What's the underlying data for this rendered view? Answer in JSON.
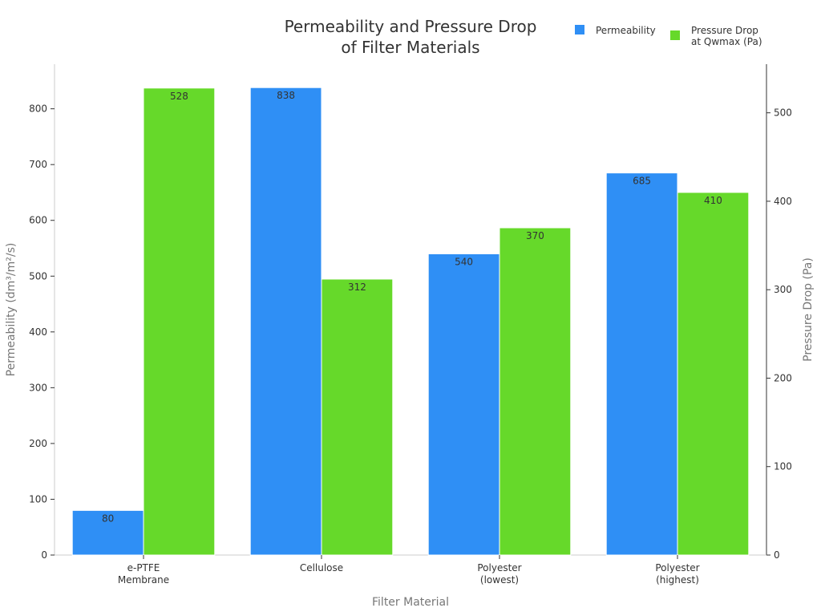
{
  "chart_data": {
    "type": "bar",
    "title_lines": [
      "Permeability and Pressure Drop",
      "of Filter Materials"
    ],
    "xlabel": "Filter Material",
    "categories": [
      [
        "e-PTFE",
        "Membrane"
      ],
      [
        "Cellulose"
      ],
      [
        "Polyester",
        "(lowest)"
      ],
      [
        "Polyester",
        "(highest)"
      ]
    ],
    "series": [
      {
        "name": "Permeability",
        "axis": "left",
        "color": "#2f8ff5",
        "values": [
          80,
          838,
          540,
          685
        ]
      },
      {
        "name_lines": [
          "Pressure Drop",
          "at Qwmax (Pa)"
        ],
        "axis": "right",
        "color": "#66d92a",
        "values": [
          528,
          312,
          370,
          410
        ]
      }
    ],
    "y_left": {
      "label": "Permeability (dm³/m²/s)",
      "ticks": [
        0,
        100,
        200,
        300,
        400,
        500,
        600,
        700,
        800
      ],
      "range": [
        0,
        880
      ]
    },
    "y_right": {
      "label": "Pressure Drop (Pa)",
      "ticks": [
        0,
        100,
        200,
        300,
        400,
        500
      ],
      "range": [
        0,
        555
      ]
    },
    "legend_position": "top-right",
    "grid": false
  }
}
